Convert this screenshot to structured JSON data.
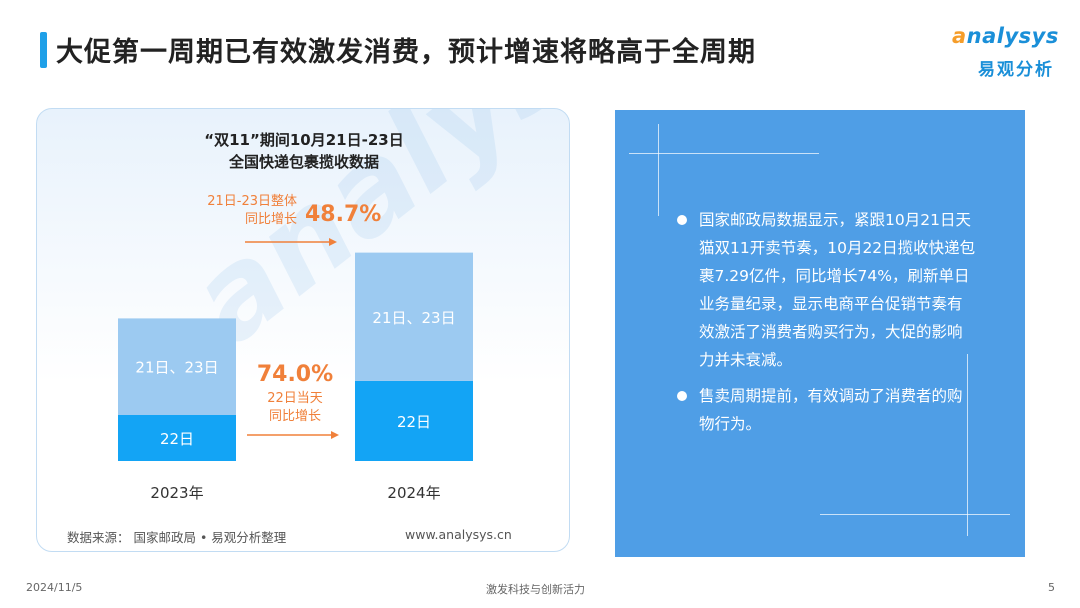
{
  "header": {
    "title": "大促第一周期已有效激发消费，预计增速将略高于全周期",
    "logo_en_ring": "a",
    "logo_en_rest": "nalysys",
    "logo_cn": "易观分析"
  },
  "chart": {
    "title_line1": "“双11”期间10月21日-23日",
    "title_line2": "全国快递包裹揽收数据",
    "annot_total_line1": "21日-23日整体",
    "annot_total_line2": "同比增长",
    "annot_total_value": "48.7%",
    "annot_day_value": "74.0%",
    "annot_day_line1": "22日当天",
    "annot_day_line2": "同比增长",
    "source_left": "数据来源： 国家邮政局 • 易观分析整理",
    "source_right": "www.analysys.cn",
    "watermark": "analysys 易观分析"
  },
  "chart_data": {
    "type": "bar",
    "stacked": true,
    "categories": [
      "2023年",
      "2024年"
    ],
    "series": [
      {
        "name": "22日",
        "values": [
          1.0,
          1.74
        ],
        "color": "#13a4f5"
      },
      {
        "name": "21日、23日",
        "values": [
          2.1,
          2.79
        ],
        "color": "#9ccaf1"
      }
    ],
    "value_note": "relative scale; combined 21日-23日 total up 48.7%, 22日 up 74.0%",
    "growth_total": "48.7%",
    "growth_day22": "74.0%",
    "accent_color": "#f0803a"
  },
  "panel": {
    "bullets": [
      "国家邮政局数据显示，紧跟10月21日天猫双11开卖节奏，10月22日揽收快递包裹7.29亿件，同比增长74%，刷新单日业务量纪录，显示电商平台促销节奏有效激活了消费者购买行为，大促的影响力并未衰减。",
      "售卖周期提前，有效调动了消费者的购物行为。"
    ]
  },
  "footer": {
    "date": "2024/11/5",
    "center": "激发科技与创新活力",
    "page": "5"
  }
}
